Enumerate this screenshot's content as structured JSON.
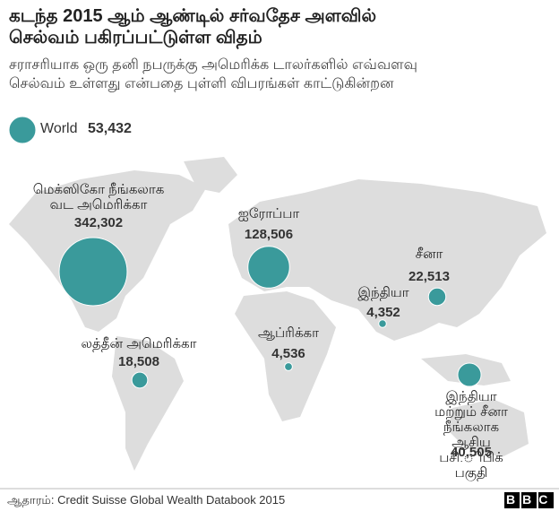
{
  "chart_data": {
    "type": "bubble",
    "title": "கடந்த 2015 ஆம் ஆண்டில் சர்வதேச அளவில்\nசெல்வம்  பகிரப்பட்டுள்ள விதம்",
    "subtitle": "சராசரியாக ஒரு தனி நபருக்கு அமெரிக்க டாலர்களில் எவ்வளவு\nசெல்வம் உள்ளது என்பதை புள்ளி விபரங்கள் காட்டுகின்றன",
    "color": "#3a9a9b",
    "legend": {
      "name": "World",
      "value": 53432,
      "label": "53,432"
    },
    "categories": [
      "மெக்ஸிகோ நீங்கலாக\nவட அமெரிக்கா",
      "ஐரோப்பா",
      "சீனா",
      "இந்தியா",
      "லத்தீன் அமெரிக்கா",
      "ஆப்ரிக்கா",
      "இந்தியா மற்றும் சீனா\nநீங்கலாக ஆசிய\nபசி.ிபிக் பகுதி"
    ],
    "values": [
      342302,
      128506,
      22513,
      4352,
      18508,
      4536,
      40505
    ],
    "value_labels": [
      "342,302",
      "128,506",
      "22,513",
      "4,352",
      "18,508",
      "4,536",
      "40,505"
    ],
    "source": "ஆதாரம்: Credit Suisse Global Wealth Databook 2015",
    "logo": "BBC"
  }
}
